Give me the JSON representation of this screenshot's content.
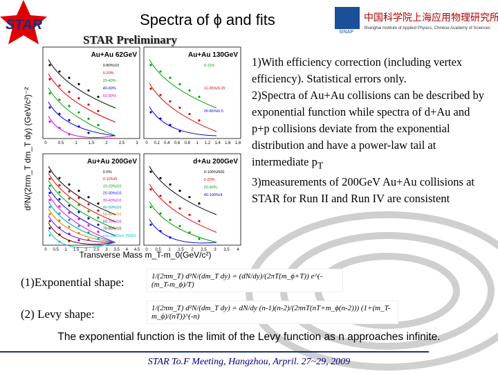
{
  "header": {
    "logo": "STAR",
    "title": "Spectra of ϕ and fits",
    "institute_cn": "中国科学院上海应用物理研究所",
    "institute_en": "Shanghai Institute of Applied Physics, Chinese Academy of Sciences",
    "institute_abbr": "SINAP"
  },
  "subtitle": "STAR Preliminary",
  "figure": {
    "y_axis_label": "d²N/(2πm_T dm_T dy) (GeV/c²)⁻²",
    "x_axis_label": "Transverse Mass m_T-m_0(GeV/c²)",
    "panels": [
      {
        "title": "Au+Au 62GeV",
        "legend": [
          "0-80%/10",
          "0-20%",
          "20-40%",
          "40-60%",
          "60-80%"
        ],
        "colors": [
          "#000000",
          "#e00000",
          "#00a000",
          "#0000e0",
          "#e000e0"
        ],
        "xticks": [
          "0",
          "0.5",
          "1",
          "1.5",
          "2",
          "2.5",
          "3"
        ]
      },
      {
        "title": "Au+Au 130GeV",
        "legend": [
          "0-11%",
          "11-26%/0.25",
          "26-85%/0.5"
        ],
        "colors": [
          "#00a000",
          "#e00000",
          "#0000e0"
        ],
        "xticks": [
          "0",
          "0.2",
          "0.4",
          "0.6",
          "0.8",
          "1",
          "1.2",
          "1.4",
          "1.6",
          "1.8"
        ]
      },
      {
        "title": "Au+Au 200GeV",
        "legend": [
          "0-5%",
          "0-10%/5",
          "10-20%/10",
          "20-30%/10",
          "30-40%/10",
          "40-50%/10",
          "50-60%/10",
          "60-70%/10",
          "70-80%/10",
          "p+p 200GeV (NSD)"
        ],
        "colors": [
          "#000000",
          "#e00000",
          "#00a000",
          "#0000e0",
          "#e000e0",
          "#00a0a0",
          "#c08000",
          "#8000c0",
          "#600000",
          "#00c0e0"
        ],
        "xticks": [
          "0",
          "0.5",
          "1",
          "1.5",
          "2",
          "2.5",
          "3",
          "3.5",
          "4",
          "4.5"
        ]
      },
      {
        "title": "d+Au 200GeV",
        "legend": [
          "0-100%/500",
          "0-20%",
          "20-40%",
          "40-100%/4"
        ],
        "colors": [
          "#000000",
          "#e00000",
          "#00a000",
          "#0000e0"
        ],
        "xticks": [
          "0",
          "0.5",
          "1",
          "1.5",
          "2",
          "2.5",
          "3",
          "3.5",
          "4"
        ]
      }
    ]
  },
  "notes": [
    {
      "number": "1)",
      "text": "With efficiency correction (including vertex efficiency). Statistical errors only."
    },
    {
      "number": "2)",
      "text": "Spectra of Au+Au collisions can be described by exponential function while spectra of d+Au and p+p collisions deviate from the exponential distribution and have a power-law tail at intermediate p",
      "subscript": "T"
    },
    {
      "number": "3)",
      "text": "measurements of 200GeV Au+Au collisions at STAR for Run II and Run IV are consistent"
    }
  ],
  "formulas": [
    {
      "label": "(1)Exponential shape:",
      "expression": "1/(2πm_T) d²N/(dm_T dy) = (dN/dy)/(2πT(m_ϕ+T)) e^(-(m_T-m_ϕ)/T)"
    },
    {
      "label": "(2) Levy shape:",
      "expression": "1/(2πm_T) d²N/(dm_T dy) = dN/dy (n-1)(n-2)/(2πnT(nT+m_ϕ(n-2))) (1+(m_T-m_ϕ)/(nT))^(-n)"
    }
  ],
  "conclusion": "The exponential function is the limit of the Levy function as n approaches infinite.",
  "footer": "STAR To.F Meeting, Hangzhou, Arpril. 27~29, 2009"
}
